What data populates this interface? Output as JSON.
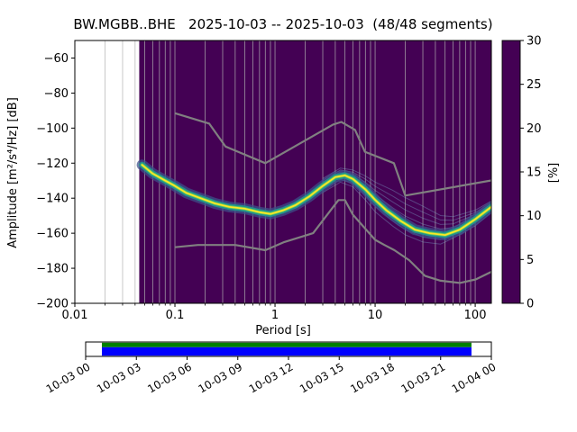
{
  "title": "BW.MGBB..BHE   2025-10-03 -- 2025-10-03  (48/48 segments)",
  "axes": {
    "xlabel": "Period [s]",
    "ylabel": "Amplitude [m²/s⁴/Hz] [dB]",
    "xlim": [
      0.01,
      145
    ],
    "ylim": [
      -200,
      -50
    ],
    "xticks": [
      {
        "v": 0.01,
        "label": "0.01"
      },
      {
        "v": 0.1,
        "label": "0.1"
      },
      {
        "v": 1,
        "label": "1"
      },
      {
        "v": 10,
        "label": "10"
      },
      {
        "v": 100,
        "label": "100"
      }
    ],
    "yticks": [
      -200,
      -180,
      -160,
      -140,
      -120,
      -100,
      -80,
      -60
    ]
  },
  "colorbar": {
    "label": "[%]",
    "min": 0,
    "max": 30,
    "ticks": [
      0,
      5,
      10,
      15,
      20,
      25,
      30
    ],
    "colormap": "viridis",
    "colors": [
      "#440154",
      "#3b528b",
      "#21918c",
      "#5ec962",
      "#fde725"
    ]
  },
  "chart_data": {
    "type": "heatmap",
    "description": "Probabilistic power spectral density (PPSD) histogram; probability [%] of PSD amplitude vs period, with Peterson high/low noise models in gray",
    "background_color": "#440154",
    "no_data_min_period": 0.044,
    "band_colors": [
      "#3b528b",
      "#21918c",
      "#5ec962",
      "#fde725"
    ],
    "series": [
      {
        "name": "psd-mode",
        "color": "#fde725",
        "x": [
          0.047,
          0.06,
          0.08,
          0.1,
          0.13,
          0.18,
          0.25,
          0.35,
          0.5,
          0.7,
          0.9,
          1.2,
          1.6,
          2.2,
          3.0,
          4.0,
          5.0,
          6.0,
          8.0,
          10,
          13,
          18,
          25,
          35,
          50,
          70,
          100,
          145
        ],
        "y": [
          -121,
          -126,
          -130,
          -133,
          -137,
          -140,
          -143,
          -145,
          -146,
          -148,
          -149,
          -147,
          -144,
          -139,
          -133,
          -128,
          -127,
          -129,
          -135,
          -141,
          -147,
          -153,
          -158,
          -160,
          -161,
          -158,
          -152,
          -145
        ]
      },
      {
        "name": "noise-model-high-NHNM",
        "color": "#808080",
        "x": [
          0.1,
          0.22,
          0.32,
          0.8,
          3.8,
          4.6,
          6.3,
          7.9,
          15.4,
          20,
          145
        ],
        "y": [
          -91.5,
          -97.4,
          -110.5,
          -120,
          -98,
          -96.5,
          -101,
          -113.5,
          -120,
          -138.5,
          -129.9
        ]
      },
      {
        "name": "noise-model-low-NLNM",
        "color": "#808080",
        "x": [
          0.1,
          0.17,
          0.4,
          0.8,
          1.24,
          2.4,
          4.3,
          5,
          6,
          10,
          12.4,
          15.6,
          21.9,
          31.6,
          45,
          70,
          101,
          145
        ],
        "y": [
          -168,
          -166.7,
          -166.7,
          -169.7,
          -165,
          -160,
          -141.1,
          -141.1,
          -149.4,
          -163.8,
          -166.7,
          -169.7,
          -175.4,
          -184.4,
          -187.1,
          -188.4,
          -186.4,
          -182
        ]
      }
    ],
    "spread": {
      "x": [
        3,
        4.5,
        6,
        8,
        10,
        15,
        20,
        30,
        45,
        60,
        100,
        145
      ],
      "upper": [
        -128,
        -122,
        -123,
        -126,
        -129,
        -133,
        -137,
        -142,
        -148,
        -149,
        -146,
        -141
      ],
      "lower": [
        -138,
        -132,
        -135,
        -143,
        -150,
        -158,
        -163,
        -167,
        -168,
        -164,
        -157,
        -149
      ]
    }
  },
  "timeline": {
    "tick_labels": [
      "10-03 00",
      "10-03 03",
      "10-03 06",
      "10-03 09",
      "10-03 12",
      "10-03 15",
      "10-03 18",
      "10-03 21",
      "10-04 00"
    ],
    "coverage": {
      "start_frac": 0.04,
      "end_frac": 0.951,
      "top_color": "#008000",
      "bottom_color": "#0000ff"
    }
  }
}
